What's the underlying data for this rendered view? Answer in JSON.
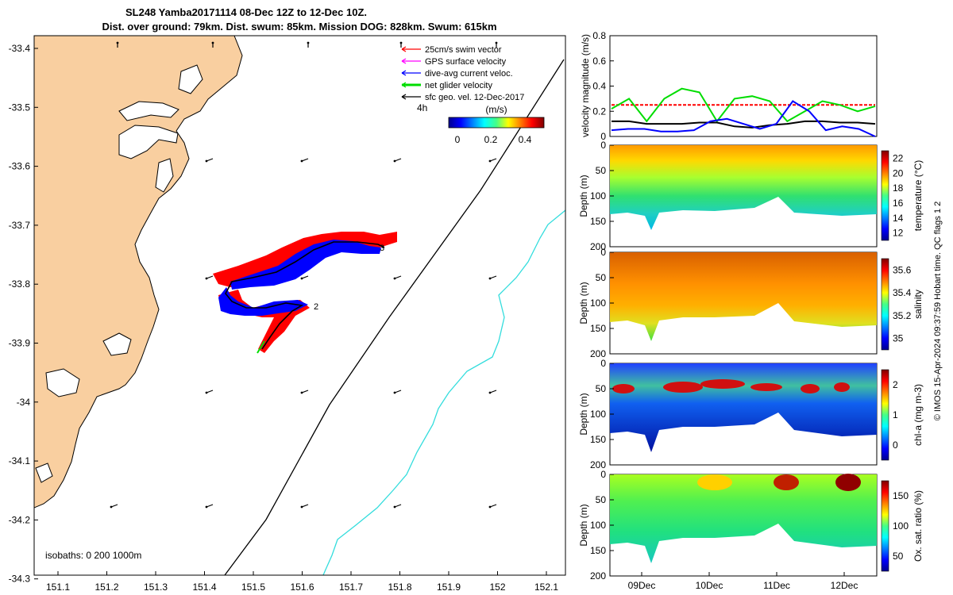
{
  "title_line1": "SL248 Yamba20171114 08-Dec 12Z to 12-Dec 10Z.",
  "title_line2": "Dist. over ground: 79km. Dist. swum: 85km. Mission DOG: 828km. Swum: 615km",
  "map": {
    "xticks": [
      "151.1",
      "151.2",
      "151.3",
      "151.4",
      "151.5",
      "151.6",
      "151.7",
      "151.8",
      "151.9",
      "152",
      "152.1"
    ],
    "yticks": [
      "-33.4",
      "-33.5",
      "-33.6",
      "-33.7",
      "-33.8",
      "-33.9",
      "-34",
      "-34.1",
      "-34.2",
      "-34.3"
    ],
    "legend": [
      {
        "label": "25cm/s swim vector",
        "color": "#ff0000"
      },
      {
        "label": "GPS surface velocity",
        "color": "#ff00ff"
      },
      {
        "label": "dive-avg current veloc.",
        "color": "#0000ff"
      },
      {
        "label": "net glider velocity",
        "color": "#00dd00"
      },
      {
        "label": "sfc geo. vel. 12-Dec-2017",
        "color": "#000000"
      }
    ],
    "label_4h": "4h",
    "cbar_unit": "(m/s)",
    "cbar_ticks": [
      "0",
      "0.2",
      "0.4"
    ],
    "isobaths": "isobaths: 0   200  1000m",
    "track_labels": [
      "2",
      "3"
    ],
    "colors": {
      "land": "#f9cfa0",
      "isobath_200": "#000000",
      "isobath_1000": "#33dddd",
      "track": "#000000",
      "swim": "#ff0000",
      "current": "#0000ff"
    }
  },
  "velocity_panel": {
    "ylabel": "velocity magnitude (m/s)",
    "yticks": [
      "0",
      "0.2",
      "0.4",
      "0.6",
      "0.8"
    ],
    "chart_data": {
      "type": "line",
      "x_start": "08-Dec 12Z",
      "x_end": "12-Dec 10Z",
      "ylim": [
        0,
        0.8
      ],
      "series": [
        {
          "color": "#ff0000",
          "style": "dashed",
          "values": [
            0.25,
            0.25,
            0.25,
            0.25,
            0.25,
            0.25,
            0.25,
            0.25,
            0.25,
            0.25,
            0.25
          ]
        },
        {
          "color": "#00dd00",
          "values": [
            0.22,
            0.3,
            0.12,
            0.3,
            0.38,
            0.35,
            0.12,
            0.3,
            0.32,
            0.28,
            0.12,
            0.2,
            0.28,
            0.25,
            0.2,
            0.24
          ]
        },
        {
          "color": "#000000",
          "values": [
            0.12,
            0.12,
            0.1,
            0.1,
            0.1,
            0.11,
            0.11,
            0.08,
            0.07,
            0.09,
            0.1,
            0.12,
            0.12,
            0.11,
            0.11,
            0.1
          ]
        },
        {
          "color": "#0000ff",
          "values": [
            0.05,
            0.06,
            0.06,
            0.04,
            0.04,
            0.05,
            0.12,
            0.14,
            0.1,
            0.06,
            0.1,
            0.28,
            0.2,
            0.05,
            0.08,
            0.06,
            0.0
          ]
        }
      ]
    }
  },
  "sections": [
    {
      "name": "temperature",
      "ylabel": "Depth (m)",
      "cbar_label": "temperature (°C)",
      "cbar_ticks": [
        "12",
        "14",
        "16",
        "18",
        "20",
        "22"
      ],
      "cmap": "jet"
    },
    {
      "name": "salinity",
      "ylabel": "Depth (m)",
      "cbar_label": "salinity",
      "cbar_ticks": [
        "35",
        "35.2",
        "35.4",
        "35.6"
      ],
      "cmap": "jet"
    },
    {
      "name": "chla",
      "ylabel": "Depth (m)",
      "cbar_label": "chl-a (mg m-3)",
      "cbar_ticks": [
        "0",
        "1",
        "2"
      ],
      "cmap": "jet"
    },
    {
      "name": "oxygen",
      "ylabel": "Depth (m)",
      "cbar_label": "Ox. sat. ratio (%)",
      "cbar_ticks": [
        "50",
        "100",
        "150"
      ],
      "cmap": "jet"
    }
  ],
  "depth_ticks": [
    "0",
    "50",
    "100",
    "150",
    "200"
  ],
  "date_ticks": [
    "09Dec",
    "10Dec",
    "11Dec",
    "12Dec"
  ],
  "side_text": "© IMOS 15-Apr-2024 09:37:59 Hobart time. QC flags 1  2"
}
